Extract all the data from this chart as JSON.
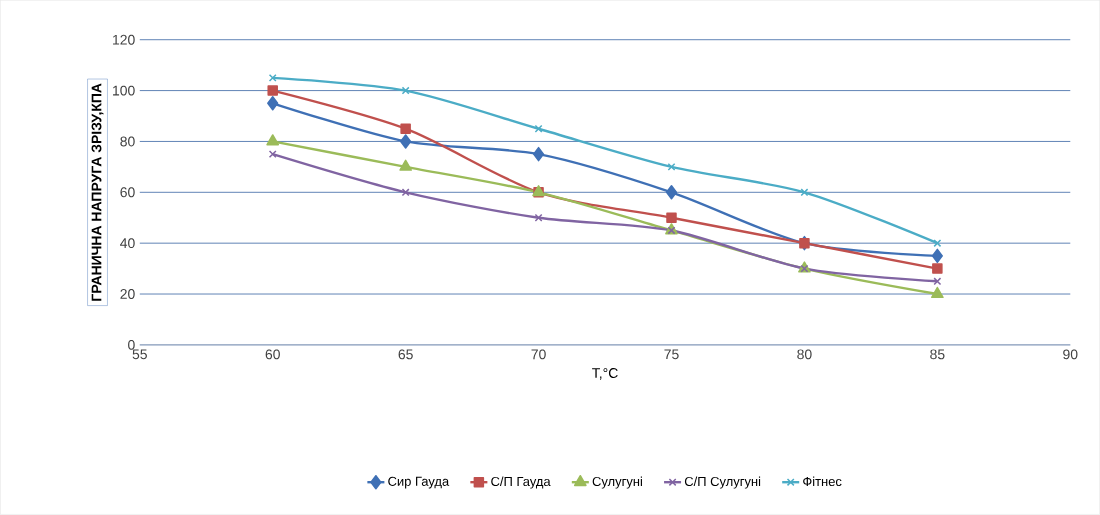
{
  "chart_data": {
    "type": "line",
    "xlabel": "T,°C",
    "ylabel": "ГРАНИЧНА НАПРУГА ЗРІЗУ,КПА",
    "x": [
      60,
      65,
      70,
      75,
      80,
      85
    ],
    "series": [
      {
        "name": "Сир Гауда",
        "color": "#3f70b5",
        "marker": "diamond",
        "values": [
          95,
          80,
          75,
          60,
          40,
          35
        ]
      },
      {
        "name": "С/П Гауда",
        "color": "#c0504d",
        "marker": "square",
        "values": [
          100,
          85,
          60,
          50,
          40,
          30
        ]
      },
      {
        "name": "Сулугуні",
        "color": "#9bbb59",
        "marker": "triangle",
        "values": [
          80,
          70,
          60,
          45,
          30,
          20
        ]
      },
      {
        "name": "С/П Сулугуні",
        "color": "#8064a2",
        "marker": "cross",
        "values": [
          75,
          60,
          50,
          45,
          30,
          25
        ]
      },
      {
        "name": "Фітнес",
        "color": "#4bacc6",
        "marker": "cross",
        "values": [
          105,
          100,
          85,
          70,
          60,
          40
        ]
      }
    ],
    "xlim": [
      55,
      90
    ],
    "xticks": [
      55,
      60,
      65,
      70,
      75,
      80,
      85,
      90
    ],
    "ylim": [
      0,
      120
    ],
    "yticks": [
      0,
      20,
      40,
      60,
      80,
      100,
      120
    ],
    "grid": "y",
    "legend": "bottom",
    "line_style": "solid"
  }
}
